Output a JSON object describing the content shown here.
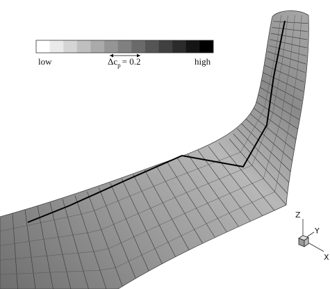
{
  "legend": {
    "low": "low",
    "high": "high",
    "symbol": "Δc",
    "subscript": "p",
    "increment": "= 0.2"
  },
  "axes": {
    "z": "Z",
    "y": "Y",
    "x": "X"
  }
}
